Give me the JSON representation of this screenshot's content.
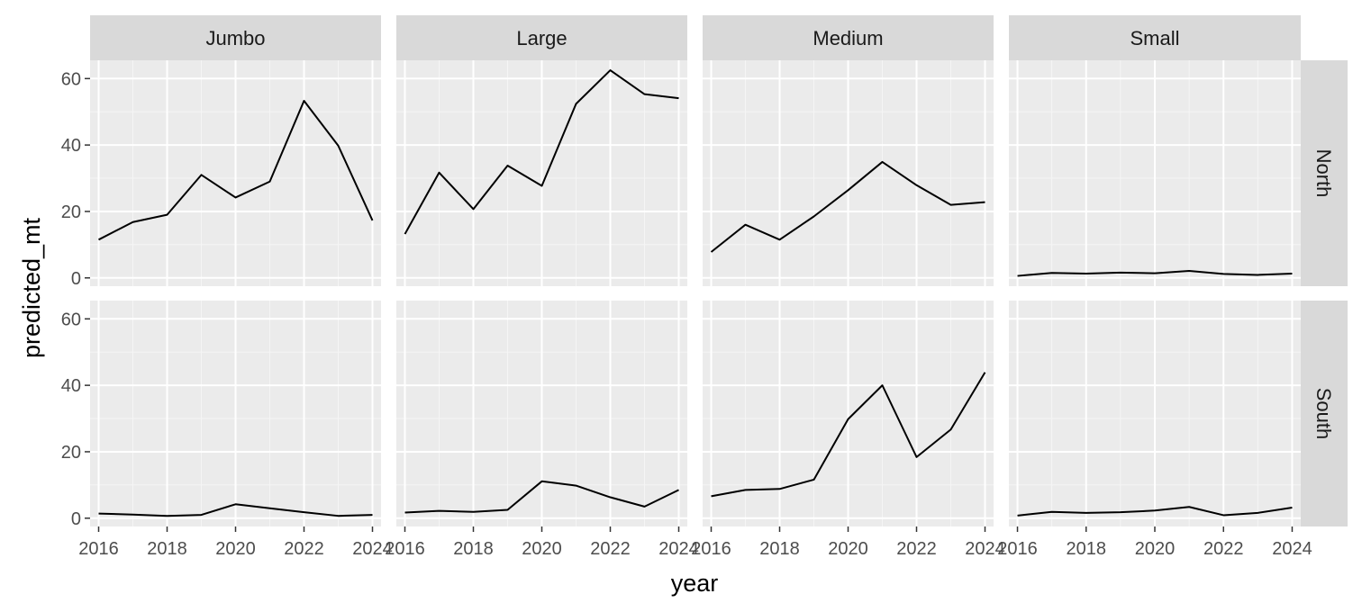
{
  "colors": {
    "panel_background": "#ebebeb",
    "strip_background": "#d9d9d9",
    "grid_major": "#ffffff",
    "grid_minor": "#f5f5f5",
    "line": "#000000",
    "tick_text": "#4d4d4d",
    "axis_title_text": "#000000",
    "strip_text": "#1a1a1a"
  },
  "chart_data": {
    "type": "line",
    "layout": "facet_grid",
    "xlabel": "year",
    "ylabel": "predicted_mt",
    "col_facets": [
      "Jumbo",
      "Large",
      "Medium",
      "Small"
    ],
    "row_facets": [
      "North",
      "South"
    ],
    "x": [
      2016,
      2017,
      2018,
      2019,
      2020,
      2021,
      2022,
      2023,
      2024
    ],
    "xlim": [
      2015.75,
      2024.25
    ],
    "ylim": [
      -2.5,
      65.5
    ],
    "x_ticks": [
      2016,
      2018,
      2020,
      2022,
      2024
    ],
    "x_tick_labels": [
      "2016",
      "2018",
      "2020",
      "2022",
      "2024"
    ],
    "y_ticks": [
      0,
      20,
      40,
      60
    ],
    "y_tick_labels": [
      "0",
      "20",
      "40",
      "60"
    ],
    "grid": true,
    "panels": [
      {
        "row": "North",
        "col": "Jumbo",
        "values": [
          11.5,
          16.8,
          19.0,
          31.0,
          24.2,
          29.0,
          53.3,
          39.8,
          17.3
        ]
      },
      {
        "row": "North",
        "col": "Large",
        "values": [
          13.2,
          31.7,
          20.7,
          33.8,
          27.7,
          52.4,
          62.5,
          55.3,
          54.1
        ]
      },
      {
        "row": "North",
        "col": "Medium",
        "values": [
          7.8,
          16.0,
          11.5,
          18.5,
          26.4,
          34.9,
          27.9,
          22.0,
          22.8
        ]
      },
      {
        "row": "North",
        "col": "Small",
        "values": [
          0.6,
          1.5,
          1.3,
          1.6,
          1.4,
          2.1,
          1.2,
          0.9,
          1.3
        ]
      },
      {
        "row": "South",
        "col": "Jumbo",
        "values": [
          1.4,
          1.1,
          0.7,
          1.0,
          4.2,
          3.0,
          1.8,
          0.7,
          1.0
        ]
      },
      {
        "row": "South",
        "col": "Large",
        "values": [
          1.7,
          2.2,
          1.9,
          2.5,
          11.1,
          9.8,
          6.3,
          3.5,
          8.5
        ]
      },
      {
        "row": "South",
        "col": "Medium",
        "values": [
          6.6,
          8.5,
          8.8,
          11.6,
          29.8,
          40.0,
          18.4,
          26.7,
          43.9
        ]
      },
      {
        "row": "South",
        "col": "Small",
        "values": [
          0.8,
          1.9,
          1.6,
          1.8,
          2.3,
          3.4,
          0.9,
          1.6,
          3.2
        ]
      }
    ]
  }
}
